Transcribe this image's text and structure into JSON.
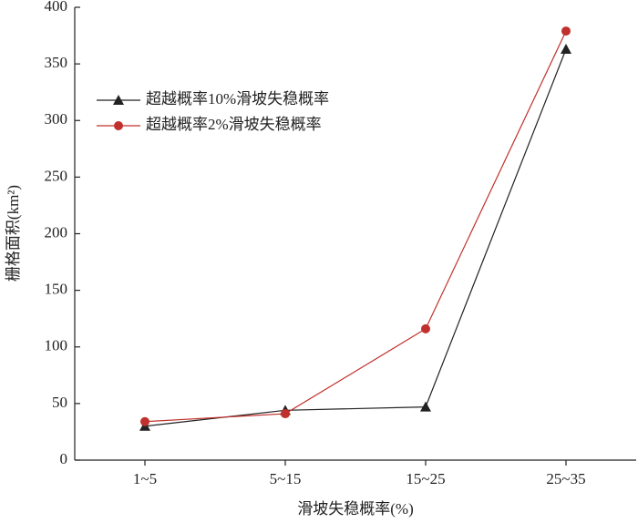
{
  "chart_data": {
    "type": "line",
    "x_label": "滑坡失稳概率(%)",
    "y_label": "栅格面积(km²)",
    "categories": [
      "1~5",
      "5~15",
      "15~25",
      "25~35"
    ],
    "series": [
      {
        "name": "超越概率10%滑坡失稳概率",
        "color": "#222222",
        "marker": "triangle",
        "values": [
          30,
          44,
          47,
          363
        ]
      },
      {
        "name": "超越概率2%滑坡失稳概率",
        "color": "#c0302c",
        "marker": "circle",
        "values": [
          34,
          41,
          116,
          379
        ]
      }
    ],
    "ylim": [
      0,
      400
    ],
    "yticks": [
      0,
      50,
      100,
      150,
      200,
      250,
      300,
      350,
      400
    ],
    "legend": "upper-left"
  }
}
